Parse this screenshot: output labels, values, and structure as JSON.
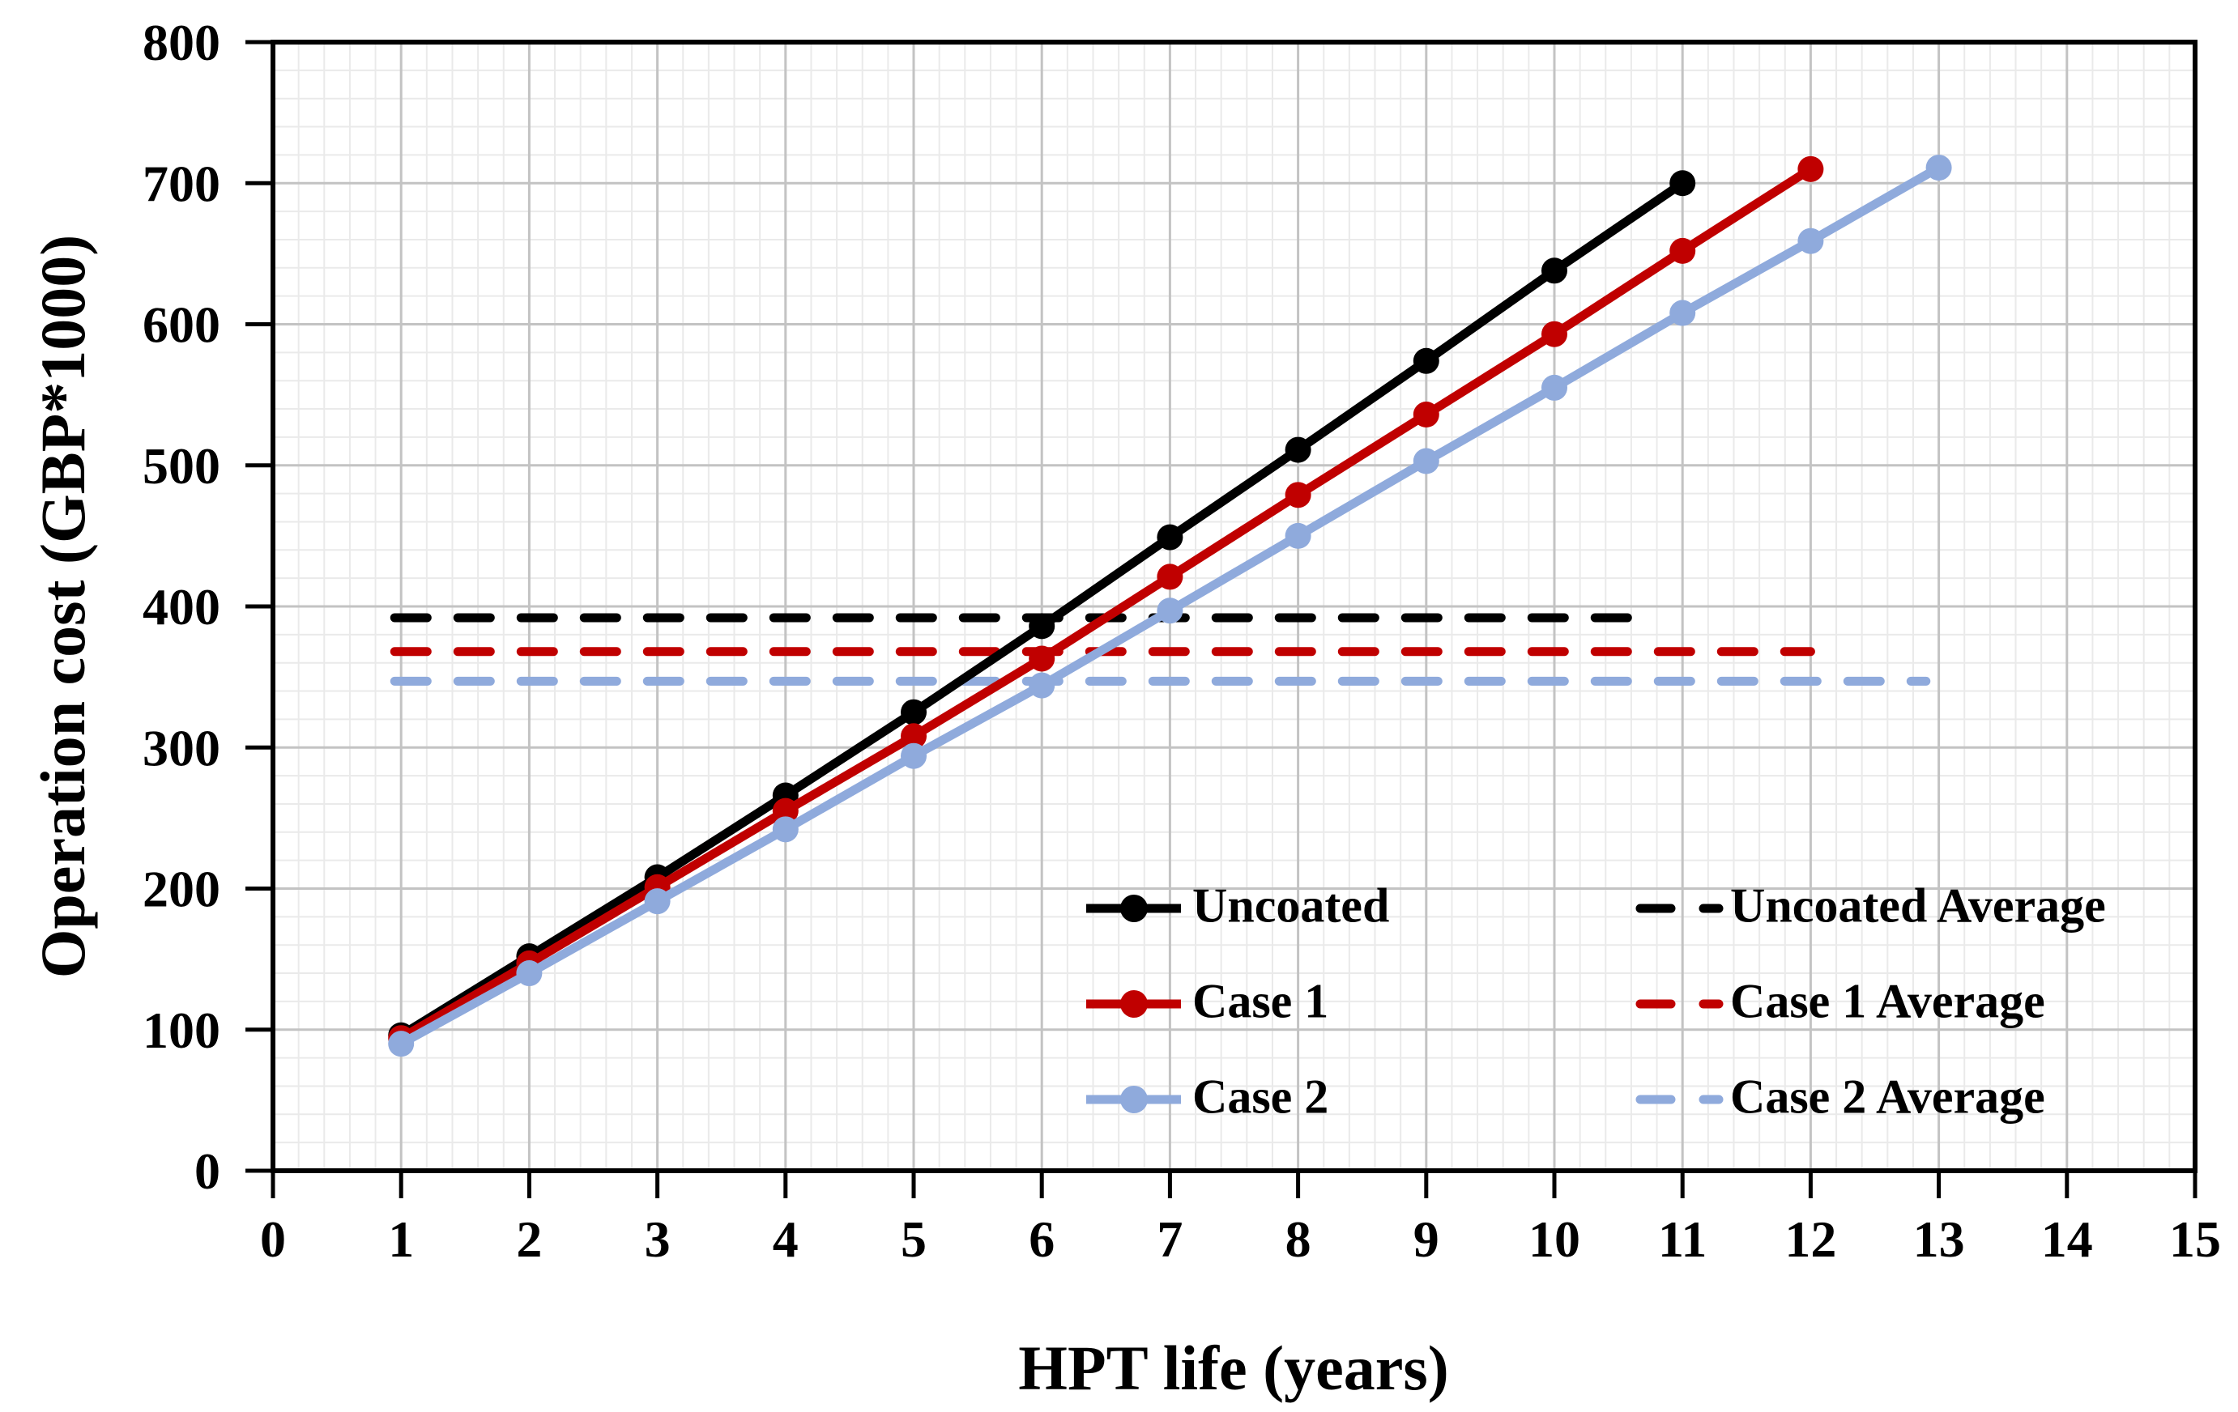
{
  "chart_data": {
    "type": "line",
    "title": "",
    "xlabel": "HPT life (years)",
    "ylabel": "Operation cost (GBP*1000)",
    "x_range": [
      0,
      15
    ],
    "y_range": [
      0,
      800
    ],
    "x_tick_step": 1,
    "y_tick_step": 100,
    "x_minor_step": 0.2,
    "y_minor_step": 20,
    "grid": "major and minor gridlines on",
    "legend_position": "inside plot, bottom-right, two columns, no border",
    "x_ticks": [
      0,
      1,
      2,
      3,
      4,
      5,
      6,
      7,
      8,
      9,
      10,
      11,
      12,
      13,
      14,
      15
    ],
    "y_ticks": [
      0,
      100,
      200,
      300,
      400,
      500,
      600,
      700,
      800
    ],
    "series": [
      {
        "name": "Uncoated",
        "color": "#000000",
        "style": "solid",
        "marker": "circle",
        "x": [
          1,
          2,
          3,
          4,
          5,
          6,
          7,
          8,
          9,
          10,
          11
        ],
        "y": [
          96,
          152,
          208,
          266,
          325,
          386,
          449,
          511,
          574,
          638,
          700
        ]
      },
      {
        "name": "Case 1",
        "color": "#C00000",
        "style": "solid",
        "marker": "circle",
        "x": [
          1,
          2,
          3,
          4,
          5,
          6,
          7,
          8,
          9,
          10,
          11,
          12
        ],
        "y": [
          94,
          147,
          201,
          255,
          308,
          363,
          421,
          479,
          536,
          593,
          652,
          710
        ]
      },
      {
        "name": "Case 2",
        "color": "#8FAADC",
        "style": "solid",
        "marker": "circle",
        "x": [
          1,
          2,
          3,
          4,
          5,
          6,
          7,
          8,
          9,
          10,
          11,
          12,
          13
        ],
        "y": [
          90,
          140,
          191,
          242,
          294,
          344,
          397,
          450,
          503,
          555,
          608,
          659,
          711
        ]
      }
    ],
    "average_lines": [
      {
        "name": "Uncoated Average",
        "color": "#000000",
        "style": "dashed",
        "y": 392,
        "x_start": 0.95,
        "x_end": 10.8
      },
      {
        "name": "Case 1 Average",
        "color": "#C00000",
        "style": "dashed",
        "y": 368,
        "x_start": 0.95,
        "x_end": 12.0
      },
      {
        "name": "Case 2 Average",
        "color": "#8FAADC",
        "style": "dashed",
        "y": 347,
        "x_start": 0.95,
        "x_end": 12.9
      }
    ],
    "colors": {
      "axis": "#000000",
      "major_grid": "#c3c3c3",
      "minor_grid": "#eaeaea",
      "background": "#ffffff"
    }
  }
}
